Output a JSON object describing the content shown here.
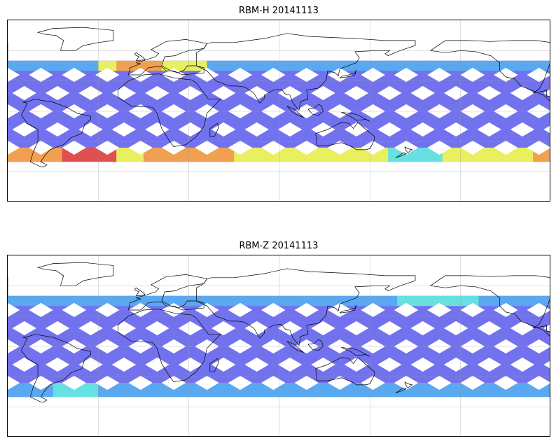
{
  "panels": [
    {
      "title": "RBM-H 20141113",
      "colormap": "jet",
      "palette": [
        "#6666ee",
        "#5aa8f0",
        "#66e0e0",
        "#e8f060",
        "#f0a050",
        "#e05050"
      ]
    },
    {
      "title": "RBM-Z 20141113",
      "colormap": "jet",
      "palette": [
        "#6666ee",
        "#5aa8f0",
        "#66e0e0",
        "#e8f060",
        "#f0a050",
        "#e05050"
      ]
    }
  ],
  "map": {
    "projection": "PlateCarree",
    "central_longitude": 90,
    "lon_range": [
      -90,
      270
    ],
    "lat_range": [
      -90,
      90
    ],
    "data_coverage_lat": [
      -50,
      50
    ],
    "gridlines": true,
    "coastlines": true,
    "missing_value_color": "#ffffff"
  }
}
